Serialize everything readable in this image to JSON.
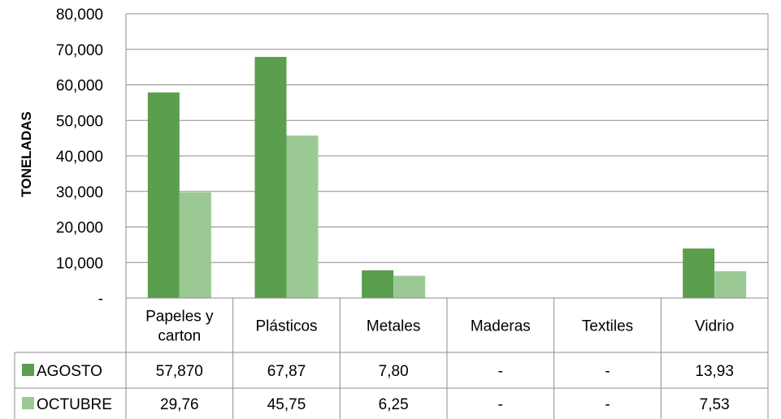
{
  "chart_data": {
    "type": "bar",
    "ylabel": "TONELADAS",
    "xlabel": "",
    "ylim": [
      0,
      80000
    ],
    "yticks": [
      {
        "value": 0,
        "label": "-"
      },
      {
        "value": 10000,
        "label": "10,000"
      },
      {
        "value": 20000,
        "label": "20,000"
      },
      {
        "value": 30000,
        "label": "30,000"
      },
      {
        "value": 40000,
        "label": "40,000"
      },
      {
        "value": 50000,
        "label": "50,000"
      },
      {
        "value": 60000,
        "label": "60,000"
      },
      {
        "value": 70000,
        "label": "70,000"
      },
      {
        "value": 80000,
        "label": "80,000"
      }
    ],
    "grid": true,
    "legend": "data-table",
    "categories": [
      [
        "Papeles y",
        "carton"
      ],
      [
        "Plásticos"
      ],
      [
        "Metales"
      ],
      [
        "Maderas"
      ],
      [
        "Textiles"
      ],
      [
        "Vidrio"
      ]
    ],
    "series": [
      {
        "name": "AGOSTO",
        "color": "#5b9e4d",
        "values": [
          57870,
          67870,
          7800,
          0,
          0,
          13930
        ],
        "table_labels": [
          "57,870",
          "67,87",
          "7,80",
          "-",
          "-",
          "13,93"
        ]
      },
      {
        "name": "OCTUBRE",
        "color": "#9bc993",
        "values": [
          29760,
          45750,
          6250,
          0,
          0,
          7530
        ],
        "table_labels": [
          "29,76",
          "45,75",
          "6,25",
          "-",
          "-",
          "7,53"
        ]
      }
    ]
  }
}
